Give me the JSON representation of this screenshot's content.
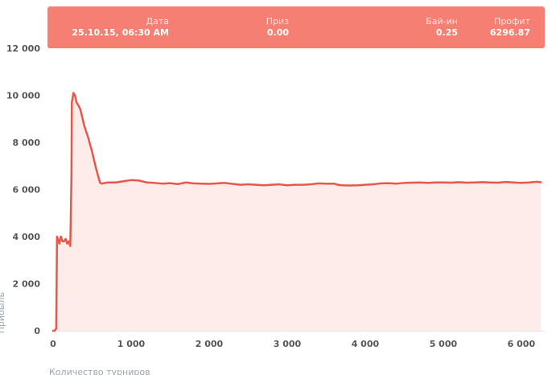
{
  "colors": {
    "line": "#e8574a",
    "area": "#fdecea",
    "tooltip_bg": "#f47f72",
    "axis_line": "#e3e6e8",
    "tick_text": "#555555",
    "axis_title": "#9aa6ad"
  },
  "tooltip": {
    "columns": [
      {
        "label": "Дата",
        "value": "25.10.15, 06:30 AM"
      },
      {
        "label": "Приз",
        "value": "0.00"
      },
      {
        "label": "Бай-ин",
        "value": "0.25"
      },
      {
        "label": "Профит",
        "value": "6296.87"
      }
    ]
  },
  "chart_data": {
    "type": "area",
    "title": "",
    "xlabel": "Количество турниров",
    "ylabel": "Прибыль",
    "xlim": [
      0,
      6300
    ],
    "ylim": [
      0,
      12000
    ],
    "x_ticks": [
      0,
      1000,
      2000,
      3000,
      4000,
      5000,
      6000
    ],
    "x_tick_labels": [
      "0",
      "1 000",
      "2 000",
      "3 000",
      "4 000",
      "5 000",
      "6 000"
    ],
    "y_ticks": [
      0,
      2000,
      4000,
      6000,
      8000,
      10000,
      12000
    ],
    "y_tick_labels": [
      "0",
      "2 000",
      "4 000",
      "6 000",
      "8 000",
      "10 000",
      "12 000"
    ],
    "grid": false,
    "legend": "none",
    "series": [
      {
        "x": [
          0,
          20,
          40,
          50,
          60,
          80,
          100,
          120,
          140,
          160,
          180,
          200,
          220,
          235,
          240,
          260,
          280,
          300,
          320,
          350,
          400,
          450,
          500,
          550,
          600,
          620,
          700,
          800,
          900,
          1000,
          1100,
          1200,
          1300,
          1400,
          1500,
          1600,
          1700,
          1800,
          1900,
          2000,
          2100,
          2200,
          2300,
          2400,
          2500,
          2600,
          2700,
          2800,
          2900,
          3000,
          3100,
          3200,
          3300,
          3400,
          3500,
          3600,
          3650,
          3700,
          3800,
          3900,
          4000,
          4100,
          4200,
          4300,
          4400,
          4500,
          4600,
          4700,
          4800,
          4900,
          5000,
          5100,
          5200,
          5300,
          5400,
          5500,
          5600,
          5700,
          5800,
          5900,
          6000,
          6100,
          6200,
          6250
        ],
        "y": [
          0,
          0,
          100,
          4000,
          3900,
          3700,
          4000,
          3800,
          3800,
          3900,
          3700,
          3800,
          3600,
          6500,
          9700,
          10100,
          10000,
          9700,
          9600,
          9400,
          8700,
          8200,
          7600,
          6900,
          6300,
          6250,
          6300,
          6300,
          6350,
          6400,
          6380,
          6300,
          6280,
          6250,
          6270,
          6230,
          6300,
          6260,
          6250,
          6240,
          6260,
          6280,
          6240,
          6200,
          6220,
          6200,
          6180,
          6200,
          6220,
          6180,
          6200,
          6200,
          6220,
          6260,
          6250,
          6250,
          6200,
          6180,
          6170,
          6180,
          6200,
          6220,
          6260,
          6270,
          6250,
          6280,
          6290,
          6300,
          6280,
          6300,
          6300,
          6290,
          6310,
          6290,
          6300,
          6310,
          6300,
          6290,
          6320,
          6300,
          6280,
          6300,
          6330,
          6310
        ]
      }
    ]
  }
}
